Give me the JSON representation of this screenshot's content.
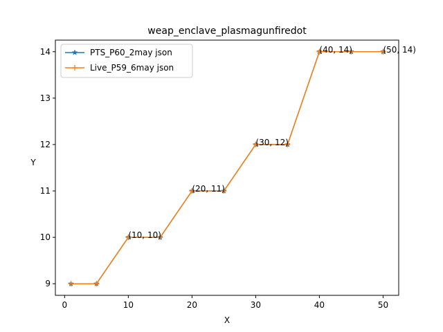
{
  "chart_data": {
    "type": "line",
    "title": "weap_enclave_plasmagunfiredot",
    "xlabel": "X",
    "ylabel": "Y",
    "xlim": [
      -1.45,
      52.45
    ],
    "ylim": [
      8.75,
      14.25
    ],
    "xticks": [
      0,
      10,
      20,
      30,
      40,
      50
    ],
    "yticks": [
      9,
      10,
      11,
      12,
      13,
      14
    ],
    "grid": false,
    "legend_position": "top-left",
    "series": [
      {
        "name": "PTS_P60_2may json",
        "color": "#1f77b4",
        "marker": "star",
        "x": [
          1,
          5,
          10,
          15,
          20,
          25,
          30,
          35,
          40,
          45,
          50
        ],
        "y": [
          9,
          9,
          10,
          10,
          11,
          11,
          12,
          12,
          14,
          14,
          14
        ]
      },
      {
        "name": "Live_P59_6may json",
        "color": "#ff7f0e",
        "marker": "plus",
        "x": [
          1,
          5,
          10,
          15,
          20,
          25,
          30,
          35,
          40,
          45,
          50
        ],
        "y": [
          9,
          9,
          10,
          10,
          11,
          11,
          12,
          12,
          14,
          14,
          14
        ]
      }
    ],
    "annotations": [
      {
        "text": "(10, 10)",
        "x": 10,
        "y": 10
      },
      {
        "text": "(20, 11)",
        "x": 20,
        "y": 11
      },
      {
        "text": "(30, 12)",
        "x": 30,
        "y": 12
      },
      {
        "text": "(40, 14)",
        "x": 40,
        "y": 14
      },
      {
        "text": "(50, 14)",
        "x": 50,
        "y": 14
      }
    ]
  }
}
